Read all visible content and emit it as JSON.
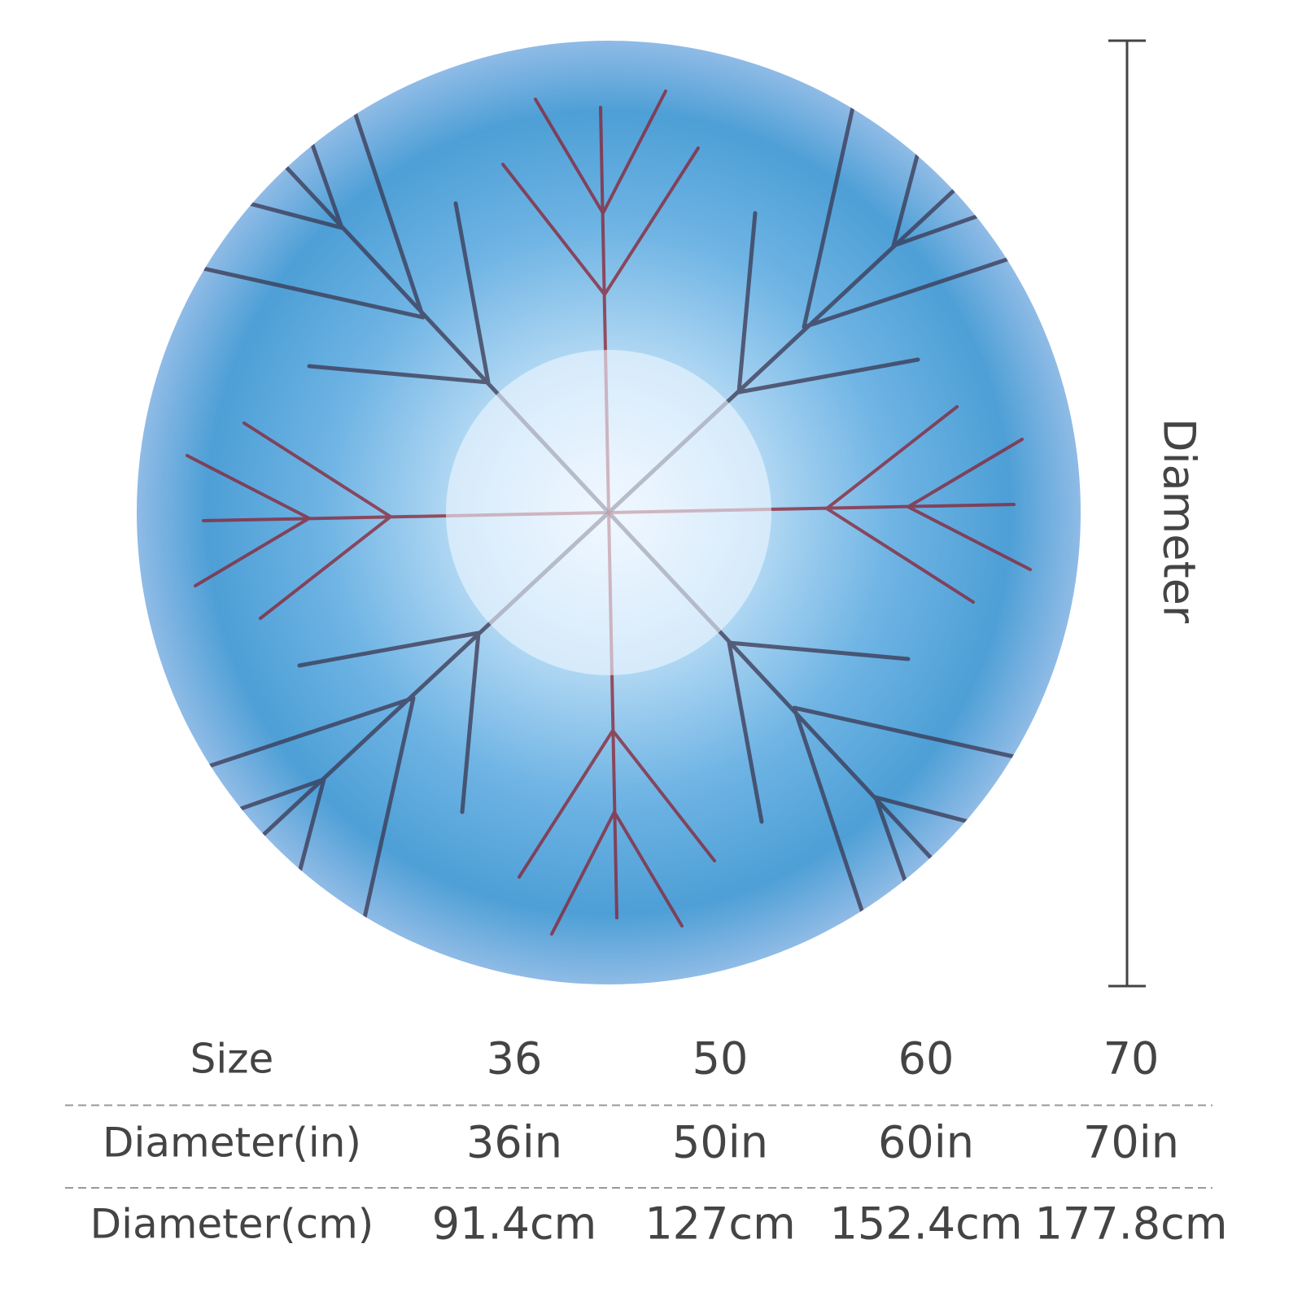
{
  "diameter_label": "Diameter",
  "table": {
    "rows": [
      [
        "Size",
        "36",
        "50",
        "60",
        "70"
      ],
      [
        "Diameter(in)",
        "36in",
        "50in",
        "60in",
        "70in"
      ],
      [
        "Diameter(cm)",
        "91.4cm",
        "127cm",
        "152.4cm",
        "177.8cm"
      ]
    ]
  }
}
